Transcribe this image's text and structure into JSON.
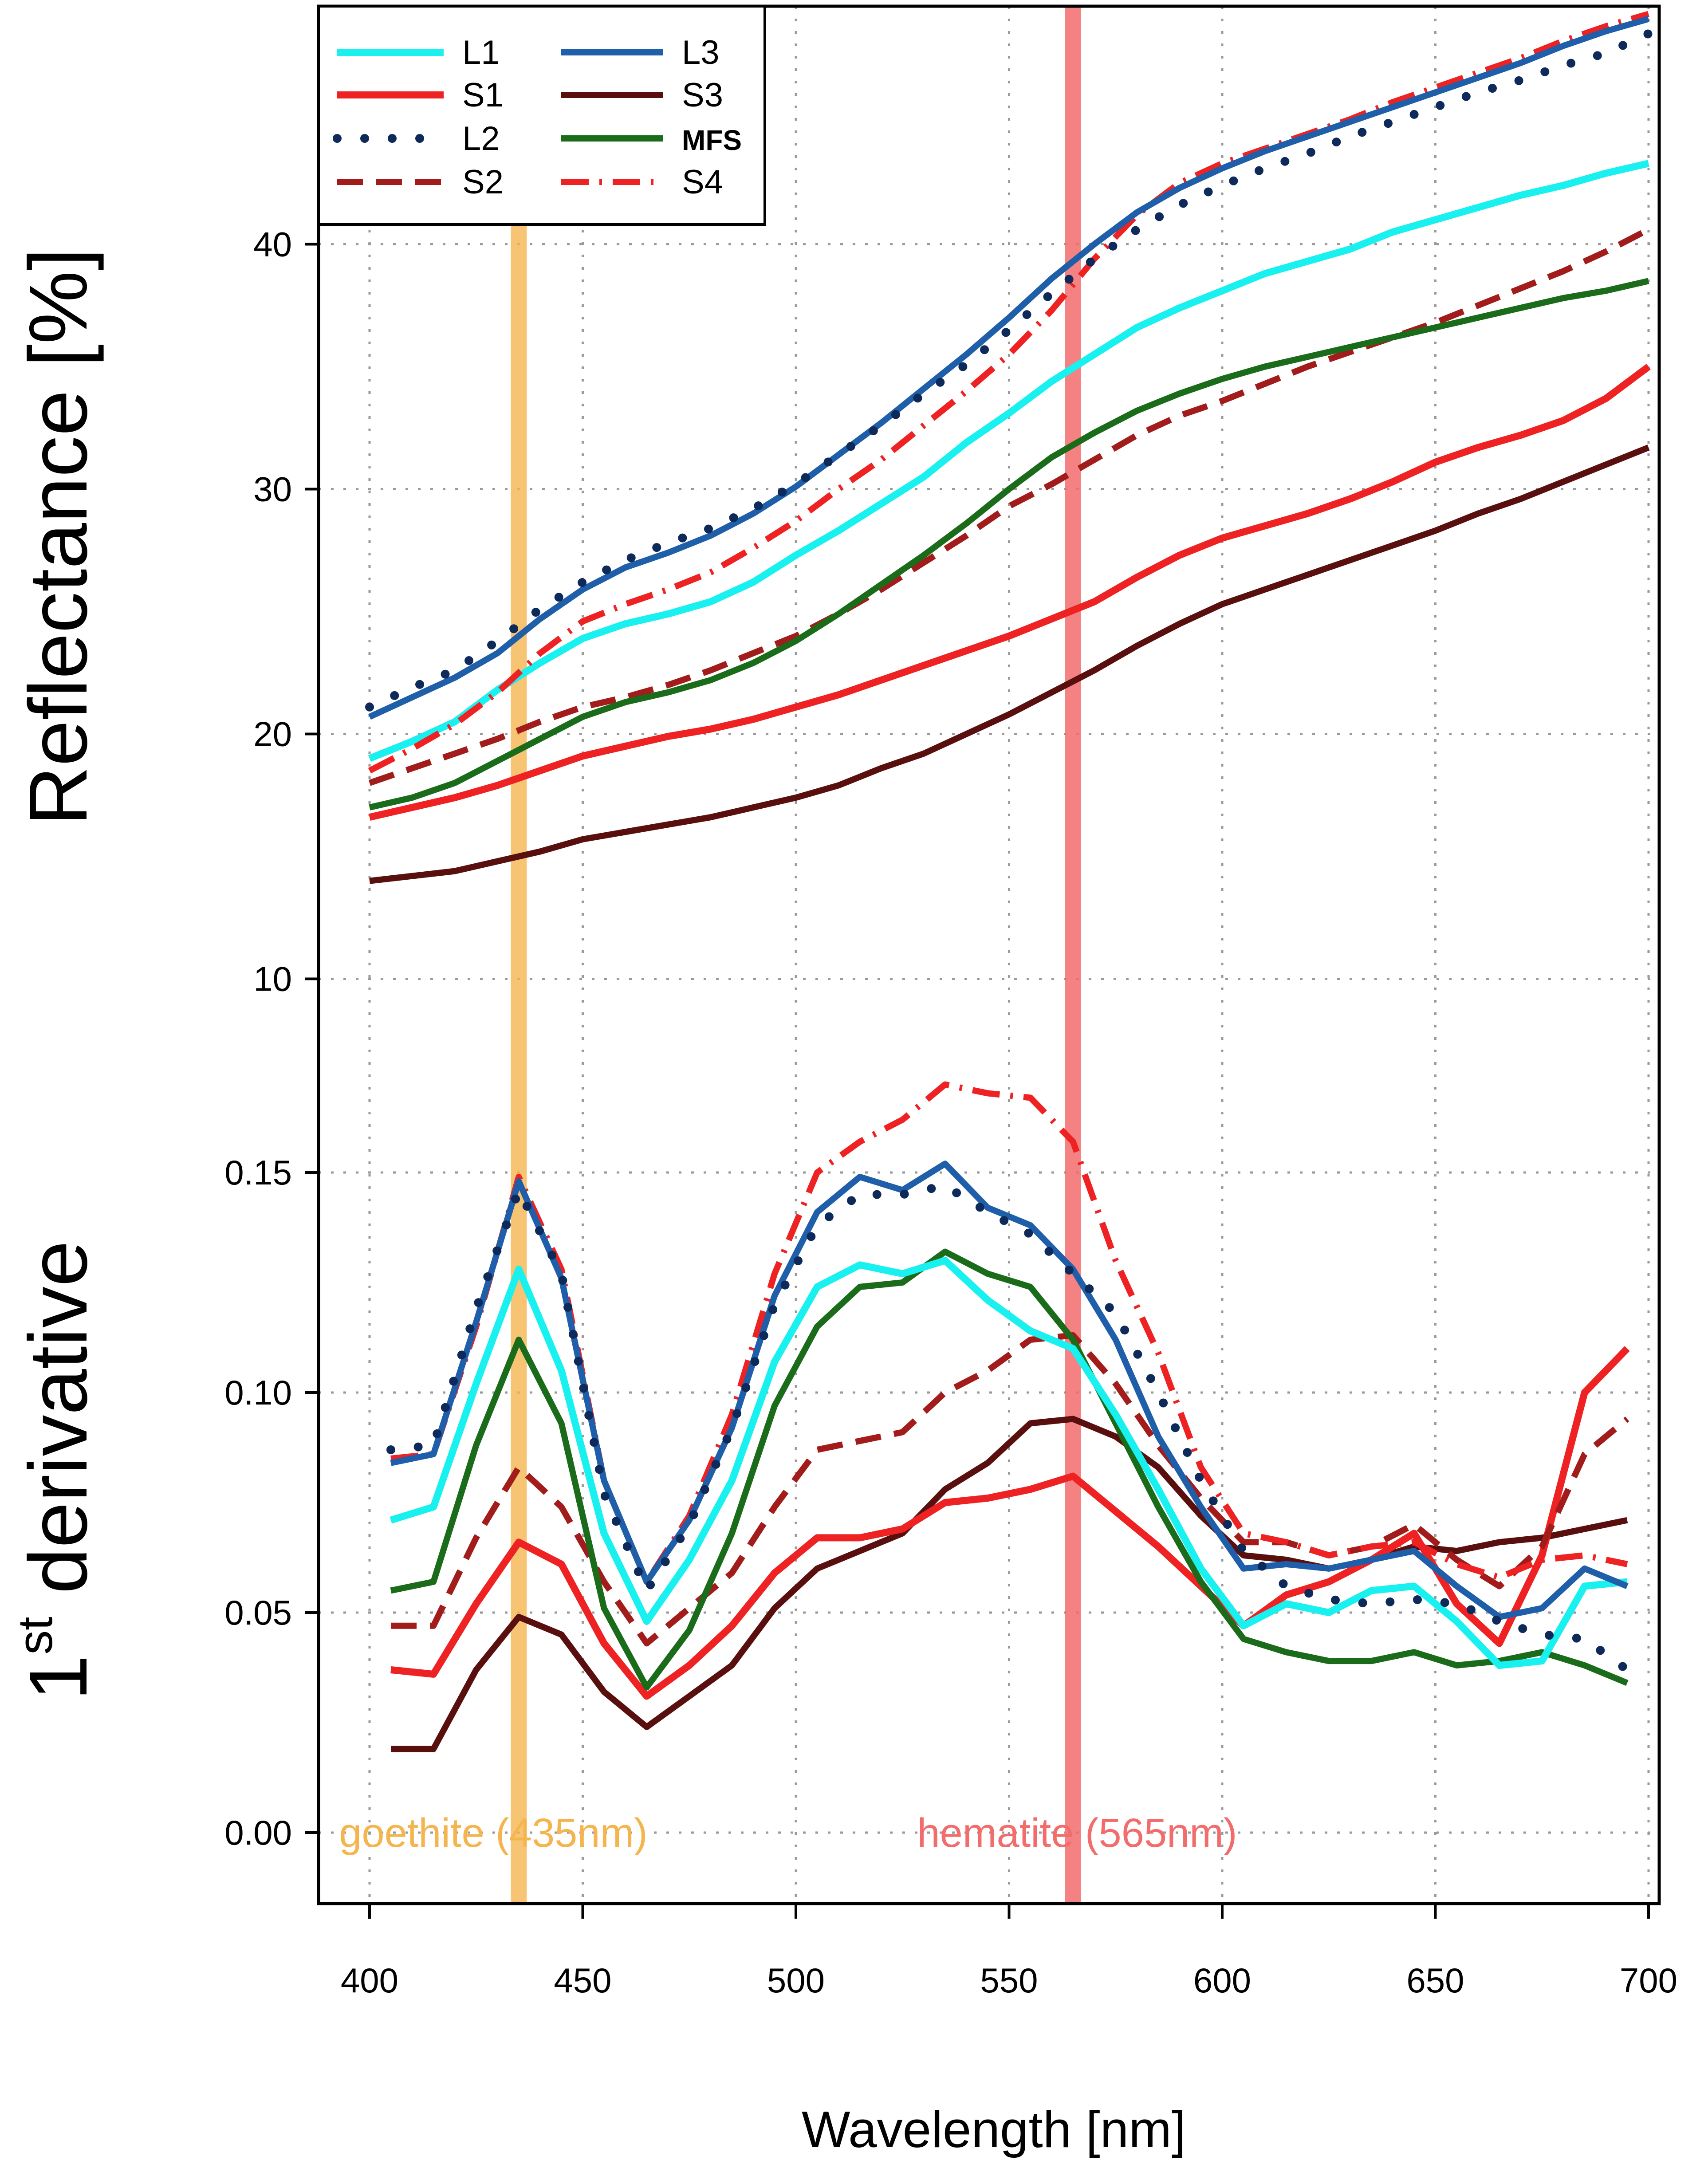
{
  "chart_data": {
    "type": "line",
    "xlabel": "Wavelength [nm]",
    "x_ticks": [
      "400",
      "450",
      "500",
      "550",
      "600",
      "650",
      "700"
    ],
    "xlim": [
      400,
      700
    ],
    "colors": {
      "L1": "#19f0f0",
      "S1": "#ee2222",
      "L2": "#0e2a5a",
      "S2": "#a31c1c",
      "L3": "#1f5ea8",
      "S3": "#5a0f0f",
      "MFS": "#1a6b1a",
      "S4": "#ee2222",
      "goethite": "#f4b54f",
      "hematite": "#f26c6c"
    },
    "legend": [
      {
        "name": "L1",
        "style": "solid"
      },
      {
        "name": "S1",
        "style": "solid"
      },
      {
        "name": "L2",
        "style": "dotted"
      },
      {
        "name": "S2",
        "style": "dashed"
      },
      {
        "name": "L3",
        "style": "solid"
      },
      {
        "name": "S3",
        "style": "solid"
      },
      {
        "name": "MFS",
        "style": "solid"
      },
      {
        "name": "S4",
        "style": "dashdot"
      }
    ],
    "markers": [
      {
        "x": 435,
        "label": "goethite (435nm)",
        "color": "#f4b54f"
      },
      {
        "x": 565,
        "label": "hematite (565nm)",
        "color": "#f26c6c"
      }
    ],
    "reflectance": {
      "ylabel": "Reflectance [%]",
      "y_ticks": [
        "10",
        "20",
        "30",
        "40"
      ],
      "x": [
        400,
        410,
        420,
        430,
        440,
        450,
        460,
        470,
        480,
        490,
        500,
        510,
        520,
        530,
        540,
        550,
        560,
        570,
        580,
        590,
        600,
        610,
        620,
        630,
        640,
        650,
        660,
        670,
        680,
        690,
        700
      ],
      "series": [
        {
          "name": "L1",
          "values": [
            19.0,
            19.7,
            20.5,
            21.8,
            22.9,
            23.9,
            24.5,
            24.9,
            25.4,
            26.2,
            27.3,
            28.3,
            29.4,
            30.5,
            31.9,
            33.1,
            34.4,
            35.5,
            36.6,
            37.4,
            38.1,
            38.8,
            39.3,
            39.8,
            40.5,
            41.0,
            41.5,
            42.0,
            42.4,
            42.9,
            43.3
          ]
        },
        {
          "name": "S1",
          "values": [
            16.6,
            17.0,
            17.4,
            17.9,
            18.5,
            19.1,
            19.5,
            19.9,
            20.2,
            20.6,
            21.1,
            21.6,
            22.2,
            22.8,
            23.4,
            24.0,
            24.7,
            25.4,
            26.4,
            27.3,
            28.0,
            28.5,
            29.0,
            29.6,
            30.3,
            31.1,
            31.7,
            32.2,
            32.8,
            33.7,
            35.0
          ]
        },
        {
          "name": "L2",
          "values": [
            21.1,
            21.9,
            22.6,
            23.8,
            25.1,
            26.2,
            27.1,
            27.8,
            28.4,
            29.2,
            30.2,
            31.4,
            32.6,
            33.9,
            35.1,
            36.5,
            38.0,
            39.4,
            40.6,
            41.6,
            42.4,
            43.1,
            43.7,
            44.4,
            45.0,
            45.6,
            46.2,
            46.7,
            47.3,
            47.8,
            48.6
          ]
        },
        {
          "name": "S2",
          "values": [
            18.0,
            18.6,
            19.2,
            19.8,
            20.5,
            21.1,
            21.5,
            22.0,
            22.6,
            23.3,
            24.0,
            24.9,
            25.9,
            27.0,
            28.1,
            29.3,
            30.2,
            31.2,
            32.2,
            33.0,
            33.6,
            34.3,
            35.0,
            35.6,
            36.2,
            36.8,
            37.5,
            38.2,
            38.9,
            39.7,
            40.6
          ]
        },
        {
          "name": "L3",
          "values": [
            20.7,
            21.5,
            22.3,
            23.3,
            24.7,
            25.9,
            26.8,
            27.4,
            28.1,
            29.0,
            30.1,
            31.4,
            32.7,
            34.1,
            35.5,
            37.0,
            38.6,
            40.0,
            41.3,
            42.3,
            43.1,
            43.8,
            44.4,
            45.0,
            45.6,
            46.2,
            46.8,
            47.4,
            48.1,
            48.7,
            49.2
          ]
        },
        {
          "name": "S3",
          "values": [
            14.0,
            14.2,
            14.4,
            14.8,
            15.2,
            15.7,
            16.0,
            16.3,
            16.6,
            17.0,
            17.4,
            17.9,
            18.6,
            19.2,
            20.0,
            20.8,
            21.7,
            22.6,
            23.6,
            24.5,
            25.3,
            25.9,
            26.5,
            27.1,
            27.7,
            28.3,
            29.0,
            29.6,
            30.3,
            31.0,
            31.7
          ]
        },
        {
          "name": "MFS",
          "values": [
            17.0,
            17.4,
            18.0,
            18.9,
            19.8,
            20.7,
            21.3,
            21.7,
            22.2,
            22.9,
            23.8,
            24.9,
            26.1,
            27.3,
            28.6,
            30.0,
            31.3,
            32.3,
            33.2,
            33.9,
            34.5,
            35.0,
            35.4,
            35.8,
            36.2,
            36.6,
            37.0,
            37.4,
            37.8,
            38.1,
            38.5
          ]
        },
        {
          "name": "S4",
          "values": [
            18.5,
            19.4,
            20.4,
            21.7,
            23.3,
            24.6,
            25.3,
            25.9,
            26.6,
            27.6,
            28.7,
            30.0,
            31.2,
            32.6,
            34.0,
            35.5,
            37.3,
            39.4,
            41.2,
            42.5,
            43.3,
            43.9,
            44.5,
            45.1,
            45.8,
            46.4,
            47.0,
            47.6,
            48.3,
            48.9,
            49.4
          ]
        }
      ]
    },
    "derivative": {
      "ylabel": "1st derivative",
      "ylabel_main": "1",
      "ylabel_sup": "st",
      "ylabel_rest": " derivative",
      "y_ticks": [
        "0.00",
        "0.05",
        "0.10",
        "0.15"
      ],
      "x": [
        405,
        415,
        425,
        435,
        445,
        455,
        465,
        475,
        485,
        495,
        505,
        515,
        525,
        535,
        545,
        555,
        565,
        575,
        585,
        595,
        605,
        615,
        625,
        635,
        645,
        655,
        665,
        675,
        685,
        695
      ],
      "series": [
        {
          "name": "L1",
          "values": [
            0.071,
            0.074,
            0.102,
            0.128,
            0.105,
            0.068,
            0.048,
            0.062,
            0.08,
            0.107,
            0.124,
            0.129,
            0.127,
            0.13,
            0.121,
            0.114,
            0.11,
            0.095,
            0.078,
            0.06,
            0.047,
            0.052,
            0.05,
            0.055,
            0.056,
            0.048,
            0.038,
            0.039,
            0.056,
            0.057
          ]
        },
        {
          "name": "S1",
          "values": [
            0.037,
            0.036,
            0.052,
            0.066,
            0.061,
            0.043,
            0.031,
            0.038,
            0.047,
            0.059,
            0.067,
            0.067,
            0.069,
            0.075,
            0.076,
            0.078,
            0.081,
            0.073,
            0.065,
            0.056,
            0.047,
            0.054,
            0.057,
            0.062,
            0.068,
            0.052,
            0.043,
            0.063,
            0.1,
            0.11
          ]
        },
        {
          "name": "L2",
          "values": [
            0.087,
            0.088,
            0.119,
            0.146,
            0.127,
            0.077,
            0.055,
            0.07,
            0.092,
            0.12,
            0.138,
            0.145,
            0.145,
            0.147,
            0.141,
            0.136,
            0.127,
            0.118,
            0.1,
            0.08,
            0.064,
            0.056,
            0.053,
            0.052,
            0.053,
            0.052,
            0.048,
            0.045,
            0.044,
            0.037
          ]
        },
        {
          "name": "S2",
          "values": [
            0.047,
            0.047,
            0.067,
            0.083,
            0.074,
            0.057,
            0.043,
            0.051,
            0.059,
            0.074,
            0.087,
            0.089,
            0.091,
            0.1,
            0.105,
            0.112,
            0.113,
            0.102,
            0.088,
            0.076,
            0.066,
            0.066,
            0.063,
            0.065,
            0.07,
            0.062,
            0.056,
            0.065,
            0.086,
            0.094
          ]
        },
        {
          "name": "L3",
          "values": [
            0.084,
            0.086,
            0.116,
            0.148,
            0.126,
            0.08,
            0.057,
            0.071,
            0.092,
            0.122,
            0.141,
            0.149,
            0.146,
            0.152,
            0.142,
            0.138,
            0.128,
            0.112,
            0.09,
            0.074,
            0.06,
            0.061,
            0.06,
            0.062,
            0.064,
            0.056,
            0.049,
            0.051,
            0.06,
            0.056
          ]
        },
        {
          "name": "S3",
          "values": [
            0.019,
            0.019,
            0.037,
            0.049,
            0.045,
            0.032,
            0.024,
            0.031,
            0.038,
            0.051,
            0.06,
            0.064,
            0.068,
            0.078,
            0.084,
            0.093,
            0.094,
            0.09,
            0.083,
            0.072,
            0.063,
            0.062,
            0.06,
            0.062,
            0.065,
            0.064,
            0.066,
            0.067,
            0.069,
            0.071
          ]
        },
        {
          "name": "MFS",
          "values": [
            0.055,
            0.057,
            0.088,
            0.112,
            0.093,
            0.051,
            0.033,
            0.046,
            0.068,
            0.097,
            0.115,
            0.124,
            0.125,
            0.132,
            0.127,
            0.124,
            0.112,
            0.093,
            0.074,
            0.057,
            0.044,
            0.041,
            0.039,
            0.039,
            0.041,
            0.038,
            0.039,
            0.041,
            0.038,
            0.034
          ]
        },
        {
          "name": "S4",
          "values": [
            0.085,
            0.086,
            0.115,
            0.149,
            0.128,
            0.08,
            0.057,
            0.072,
            0.095,
            0.127,
            0.15,
            0.157,
            0.162,
            0.17,
            0.168,
            0.167,
            0.157,
            0.13,
            0.109,
            0.083,
            0.068,
            0.066,
            0.063,
            0.065,
            0.066,
            0.061,
            0.058,
            0.062,
            0.063,
            0.061
          ]
        }
      ]
    }
  }
}
